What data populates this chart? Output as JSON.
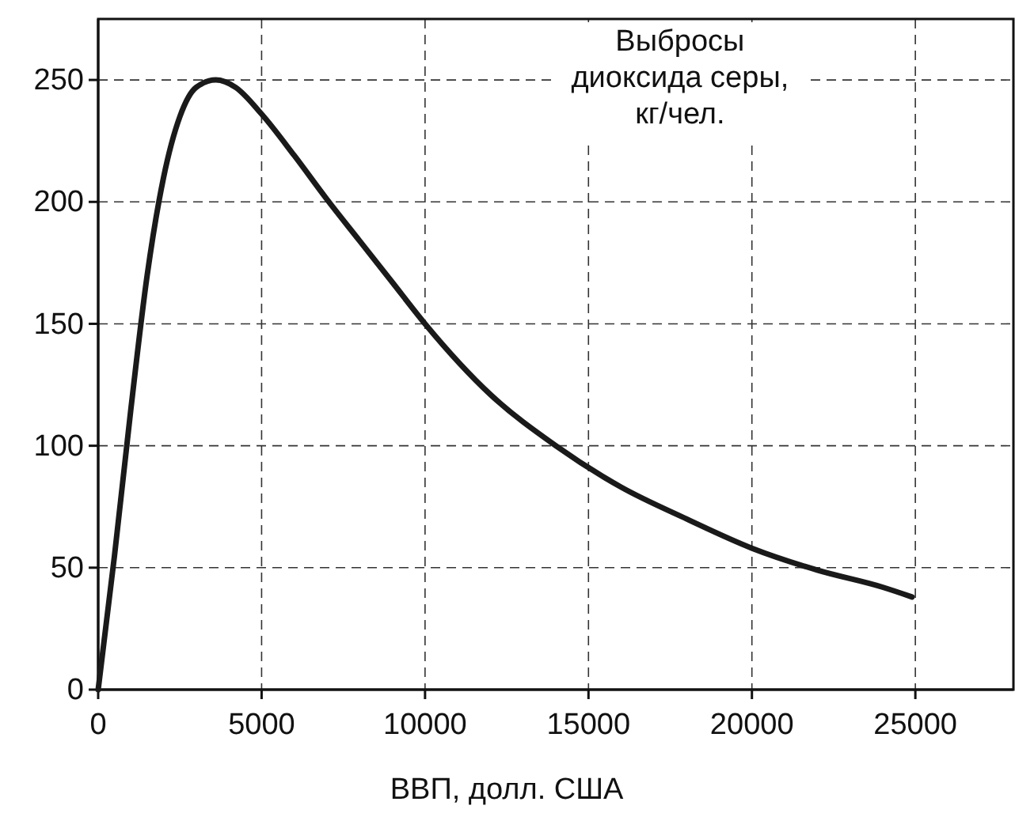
{
  "chart_data": {
    "type": "line",
    "xlabel": "ВВП, долл. США",
    "ylabel": "Выбросы\nдиоксида серы,\nкг/чел.",
    "x": [
      0,
      500,
      1000,
      1500,
      2000,
      2500,
      3000,
      3600,
      4200,
      5000,
      6000,
      7000,
      8000,
      9000,
      10000,
      12000,
      14000,
      16000,
      18000,
      20000,
      22000,
      24000,
      24900
    ],
    "series": [
      {
        "color": "#1a1a1a",
        "values": [
          0,
          55,
          115,
          170,
          210,
          235,
          247,
          250,
          247,
          236,
          219,
          201,
          184,
          167,
          150,
          121,
          100,
          83,
          70,
          58,
          49,
          42,
          38
        ]
      }
    ],
    "xlim": [
      0,
      28000
    ],
    "xticks": [
      0,
      5000,
      10000,
      15000,
      20000,
      25000
    ],
    "ylim": [
      0,
      275
    ],
    "yticks": [
      0,
      50,
      100,
      150,
      200,
      250
    ],
    "grid": true,
    "line_style": "solid",
    "marker": "none"
  }
}
